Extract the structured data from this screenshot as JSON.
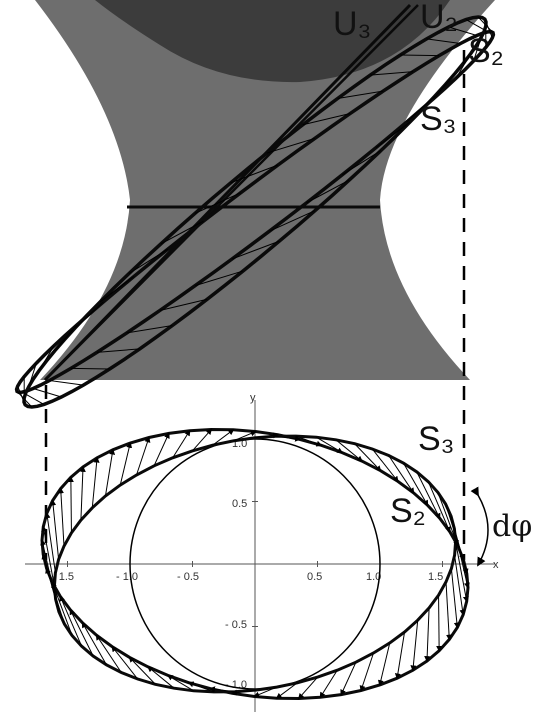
{
  "labels": {
    "u3": "U₃",
    "u2": "U₂",
    "s2_top": "S₂",
    "s3_top": "S₃",
    "s3_bottom": "S₃",
    "s2_bottom": "S₂",
    "dphi": "dφ"
  },
  "axes": {
    "x_label": "x",
    "y_label": "y",
    "x_ticks": [
      "- 1.5",
      "- 1.0",
      "- 0.5",
      "0.5",
      "1.0",
      "1.5"
    ],
    "y_ticks": [
      "1.0",
      "0.5",
      "- 0.5",
      "- 1.0"
    ]
  },
  "colors": {
    "surface_light": "#6e6e6e",
    "surface_dark": "#3c3c3c",
    "stroke": "#0a0a0a"
  },
  "model": {
    "circle_radius": 1.0,
    "s2_ellipse": {
      "a": 1.62,
      "b": 1.0,
      "rotation_deg": 10
    },
    "s3_ellipse": {
      "a": 1.72,
      "b": 1.05,
      "rotation_deg": 10
    },
    "x_range": [
      -1.85,
      1.85
    ],
    "y_range": [
      -1.2,
      1.2
    ]
  }
}
